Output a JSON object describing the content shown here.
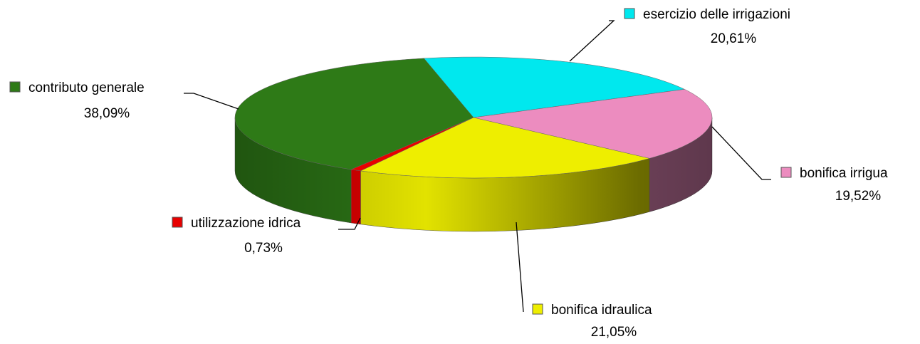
{
  "chart_data": {
    "type": "pie",
    "categories": [
      "esercizio delle irrigazioni",
      "bonifica irrigua",
      "bonifica idraulica",
      "utilizzazione idrica",
      "contributo generale"
    ],
    "values": [
      20.61,
      19.52,
      21.05,
      0.73,
      38.09
    ],
    "value_labels": [
      "20,61%",
      "19,52%",
      "21,05%",
      "0,73%",
      "38,09%"
    ],
    "colors": [
      "#00e8ee",
      "#ec8cbf",
      "#eeee00",
      "#e80000",
      "#2e7a17"
    ]
  }
}
